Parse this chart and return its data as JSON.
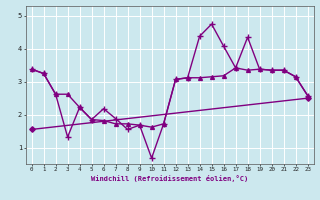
{
  "xlabel": "Windchill (Refroidissement éolien,°C)",
  "bg_color": "#cce8ee",
  "grid_color": "#ffffff",
  "line_color": "#800080",
  "xlim": [
    -0.5,
    23.5
  ],
  "ylim": [
    0.5,
    5.3
  ],
  "yticks": [
    1,
    2,
    3,
    4,
    5
  ],
  "xticks": [
    0,
    1,
    2,
    3,
    4,
    5,
    6,
    7,
    8,
    9,
    10,
    11,
    12,
    13,
    14,
    15,
    16,
    17,
    18,
    19,
    20,
    21,
    22,
    23
  ],
  "series1_x": [
    0,
    1,
    2,
    3,
    4,
    5,
    6,
    7,
    8,
    9,
    10,
    11,
    12,
    13,
    14,
    15,
    16,
    17,
    18,
    19,
    20,
    21,
    22,
    23
  ],
  "series1_y": [
    3.38,
    3.25,
    2.62,
    2.62,
    2.22,
    1.85,
    1.82,
    1.72,
    1.72,
    1.68,
    1.62,
    1.72,
    3.07,
    3.12,
    3.12,
    3.15,
    3.18,
    3.42,
    3.35,
    3.38,
    3.35,
    3.35,
    3.15,
    2.58
  ],
  "series2_x": [
    0,
    1,
    2,
    3,
    4,
    5,
    6,
    7,
    8,
    9,
    10,
    11,
    12,
    13,
    14,
    15,
    16,
    17,
    18,
    19,
    20,
    21,
    22,
    23
  ],
  "series2_y": [
    3.38,
    3.25,
    2.62,
    1.32,
    2.22,
    1.85,
    2.18,
    1.88,
    1.55,
    1.68,
    0.68,
    1.72,
    3.07,
    3.12,
    4.38,
    4.75,
    4.08,
    3.42,
    4.35,
    3.38,
    3.35,
    3.35,
    3.15,
    2.58
  ],
  "series3_x": [
    0,
    23
  ],
  "series3_y": [
    1.55,
    2.5
  ]
}
